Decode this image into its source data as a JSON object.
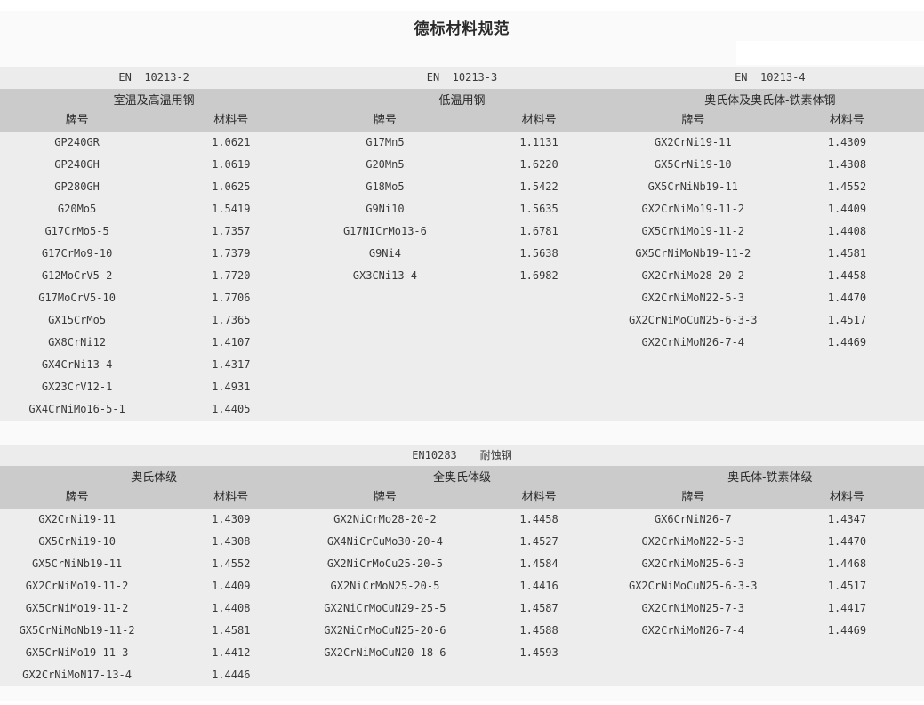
{
  "page_title": "德标材料规范",
  "colors": {
    "band_gray": "#cbcbcb",
    "row_bg": "#ededed",
    "strip_bg": "#ececec",
    "page_bg": "#fafafa",
    "text": "#3a3a3a"
  },
  "column_headers": {
    "grade": "牌号",
    "number": "材料号"
  },
  "table1": {
    "sections": [
      {
        "standard": "EN  10213-2",
        "title": "室温及高温用钢",
        "rows": [
          {
            "grade": "GP240GR",
            "number": "1.0621"
          },
          {
            "grade": "GP240GH",
            "number": "1.0619"
          },
          {
            "grade": "GP280GH",
            "number": "1.0625"
          },
          {
            "grade": "G20Mo5",
            "number": "1.5419"
          },
          {
            "grade": "G17CrMo5-5",
            "number": "1.7357"
          },
          {
            "grade": "G17CrMo9-10",
            "number": "1.7379"
          },
          {
            "grade": "G12MoCrV5-2",
            "number": "1.7720"
          },
          {
            "grade": "G17MoCrV5-10",
            "number": "1.7706"
          },
          {
            "grade": "GX15CrMo5",
            "number": "1.7365"
          },
          {
            "grade": "GX8CrNi12",
            "number": "1.4107"
          },
          {
            "grade": "GX4CrNi13-4",
            "number": "1.4317"
          },
          {
            "grade": "GX23CrV12-1",
            "number": "1.4931"
          },
          {
            "grade": "GX4CrNiMo16-5-1",
            "number": "1.4405"
          }
        ]
      },
      {
        "standard": "EN  10213-3",
        "title": "低温用钢",
        "rows": [
          {
            "grade": "G17Mn5",
            "number": "1.1131"
          },
          {
            "grade": "G20Mn5",
            "number": "1.6220"
          },
          {
            "grade": "G18Mo5",
            "number": "1.5422"
          },
          {
            "grade": "G9Ni10",
            "number": "1.5635"
          },
          {
            "grade": "G17NICrMo13-6",
            "number": "1.6781"
          },
          {
            "grade": "G9Ni4",
            "number": "1.5638"
          },
          {
            "grade": "GX3CNi13-4",
            "number": "1.6982"
          }
        ]
      },
      {
        "standard": "EN  10213-4",
        "title": "奥氏体及奥氏体-铁素体钢",
        "rows": [
          {
            "grade": "GX2CrNi19-11",
            "number": "1.4309"
          },
          {
            "grade": "GX5CrNi19-10",
            "number": "1.4308"
          },
          {
            "grade": "GX5CrNiNb19-11",
            "number": "1.4552"
          },
          {
            "grade": "GX2CrNiMo19-11-2",
            "number": "1.4409"
          },
          {
            "grade": "GX5CrNiMo19-11-2",
            "number": "1.4408"
          },
          {
            "grade": "GX5CrNiMoNb19-11-2",
            "number": "1.4581"
          },
          {
            "grade": "GX2CrNiMo28-20-2",
            "number": "1.4458"
          },
          {
            "grade": "GX2CrNiMoN22-5-3",
            "number": "1.4470"
          },
          {
            "grade": "GX2CrNiMoCuN25-6-3-3",
            "number": "1.4517"
          },
          {
            "grade": "GX2CrNiMoN26-7-4",
            "number": "1.4469"
          }
        ]
      }
    ]
  },
  "table2": {
    "standard": "EN10283",
    "standard_title": "耐蚀钢",
    "sections": [
      {
        "title": "奥氏体级",
        "rows": [
          {
            "grade": "GX2CrNi19-11",
            "number": "1.4309"
          },
          {
            "grade": "GX5CrNi19-10",
            "number": "1.4308"
          },
          {
            "grade": "GX5CrNiNb19-11",
            "number": "1.4552"
          },
          {
            "grade": "GX2CrNiMo19-11-2",
            "number": "1.4409"
          },
          {
            "grade": "GX5CrNiMo19-11-2",
            "number": "1.4408"
          },
          {
            "grade": "GX5CrNiMoNb19-11-2",
            "number": "1.4581"
          },
          {
            "grade": "GX5CrNiMo19-11-3",
            "number": "1.4412"
          },
          {
            "grade": "GX2CrNiMoN17-13-4",
            "number": "1.4446"
          }
        ]
      },
      {
        "title": "全奥氏体级",
        "rows": [
          {
            "grade": "GX2NiCrMo28-20-2",
            "number": "1.4458"
          },
          {
            "grade": "GX4NiCrCuMo30-20-4",
            "number": "1.4527"
          },
          {
            "grade": "GX2NiCrMoCu25-20-5",
            "number": "1.4584"
          },
          {
            "grade": "GX2NiCrMoN25-20-5",
            "number": "1.4416"
          },
          {
            "grade": "GX2NiCrMoCuN29-25-5",
            "number": "1.4587"
          },
          {
            "grade": "GX2NiCrMoCuN25-20-6",
            "number": "1.4588"
          },
          {
            "grade": "GX2CrNiMoCuN20-18-6",
            "number": "1.4593"
          }
        ]
      },
      {
        "title": "奥氏体-铁素体级",
        "rows": [
          {
            "grade": "GX6CrNiN26-7",
            "number": "1.4347"
          },
          {
            "grade": "GX2CrNiMoN22-5-3",
            "number": "1.4470"
          },
          {
            "grade": "GX2CrNiMoN25-6-3",
            "number": "1.4468"
          },
          {
            "grade": "GX2CrNiMoCuN25-6-3-3",
            "number": "1.4517"
          },
          {
            "grade": "GX2CrNiMoN25-7-3",
            "number": "1.4417"
          },
          {
            "grade": "GX2CrNiMoN26-7-4",
            "number": "1.4469"
          }
        ]
      }
    ]
  }
}
